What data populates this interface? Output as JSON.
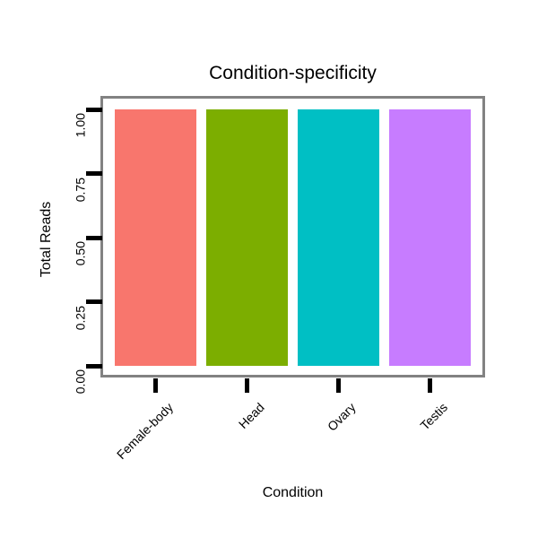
{
  "page": {
    "background": "#ffffff"
  },
  "chart_data": {
    "type": "bar",
    "title": "Condition-specificity",
    "xlabel": "Condition",
    "ylabel": "Total Reads",
    "categories": [
      "Female-body",
      "Head",
      "Ovary",
      "Testis"
    ],
    "values": [
      1.0,
      1.0,
      1.0,
      1.0
    ],
    "bar_colors": [
      "#F8766D",
      "#7CAE00",
      "#00BFC4",
      "#C77CFF"
    ],
    "y_tick_labels": [
      "0.00",
      "0.25",
      "0.50",
      "0.75",
      "1.00"
    ],
    "y_tick_values": [
      0.0,
      0.25,
      0.5,
      0.75,
      1.0
    ],
    "ylim": [
      0,
      1
    ],
    "grid": "none",
    "legend": "none",
    "styles": {
      "panel_border_color": "#828282",
      "tick_color": "#000000",
      "text_color": "#000000"
    }
  }
}
